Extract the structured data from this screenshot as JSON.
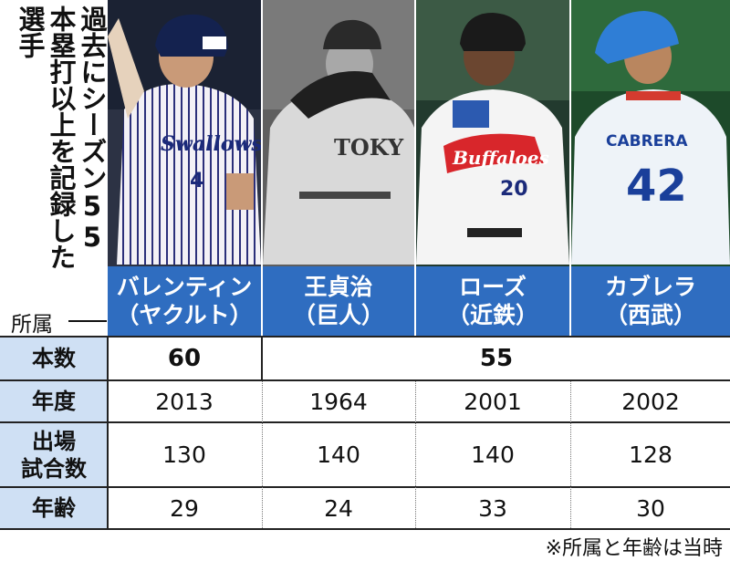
{
  "title": "過去にシーズン55本塁打以上を記録した選手",
  "affiliation_label": "所属",
  "players": [
    {
      "name": "バレンティン",
      "team": "（ヤクルト）",
      "icon": "player-photo-swallows"
    },
    {
      "name": "王貞治",
      "team": "（巨人）",
      "icon": "player-photo-giants"
    },
    {
      "name": "ローズ",
      "team": "（近鉄）",
      "icon": "player-photo-buffaloes"
    },
    {
      "name": "カブレラ",
      "team": "（西武）",
      "icon": "player-photo-lions"
    }
  ],
  "table": {
    "rows": [
      {
        "label": "本数",
        "values": [
          "60",
          "55"
        ]
      },
      {
        "label": "年度",
        "values": [
          "2013",
          "1964",
          "2001",
          "2002"
        ]
      },
      {
        "label_line1": "出場",
        "label_line2": "試合数",
        "values": [
          "130",
          "140",
          "140",
          "128"
        ]
      },
      {
        "label": "年齢",
        "values": [
          "29",
          "24",
          "33",
          "30"
        ]
      }
    ]
  },
  "note": "※所属と年齢は当時",
  "colors": {
    "name_bar": "#2f6dc0",
    "label_column": "#cfe0f4"
  }
}
